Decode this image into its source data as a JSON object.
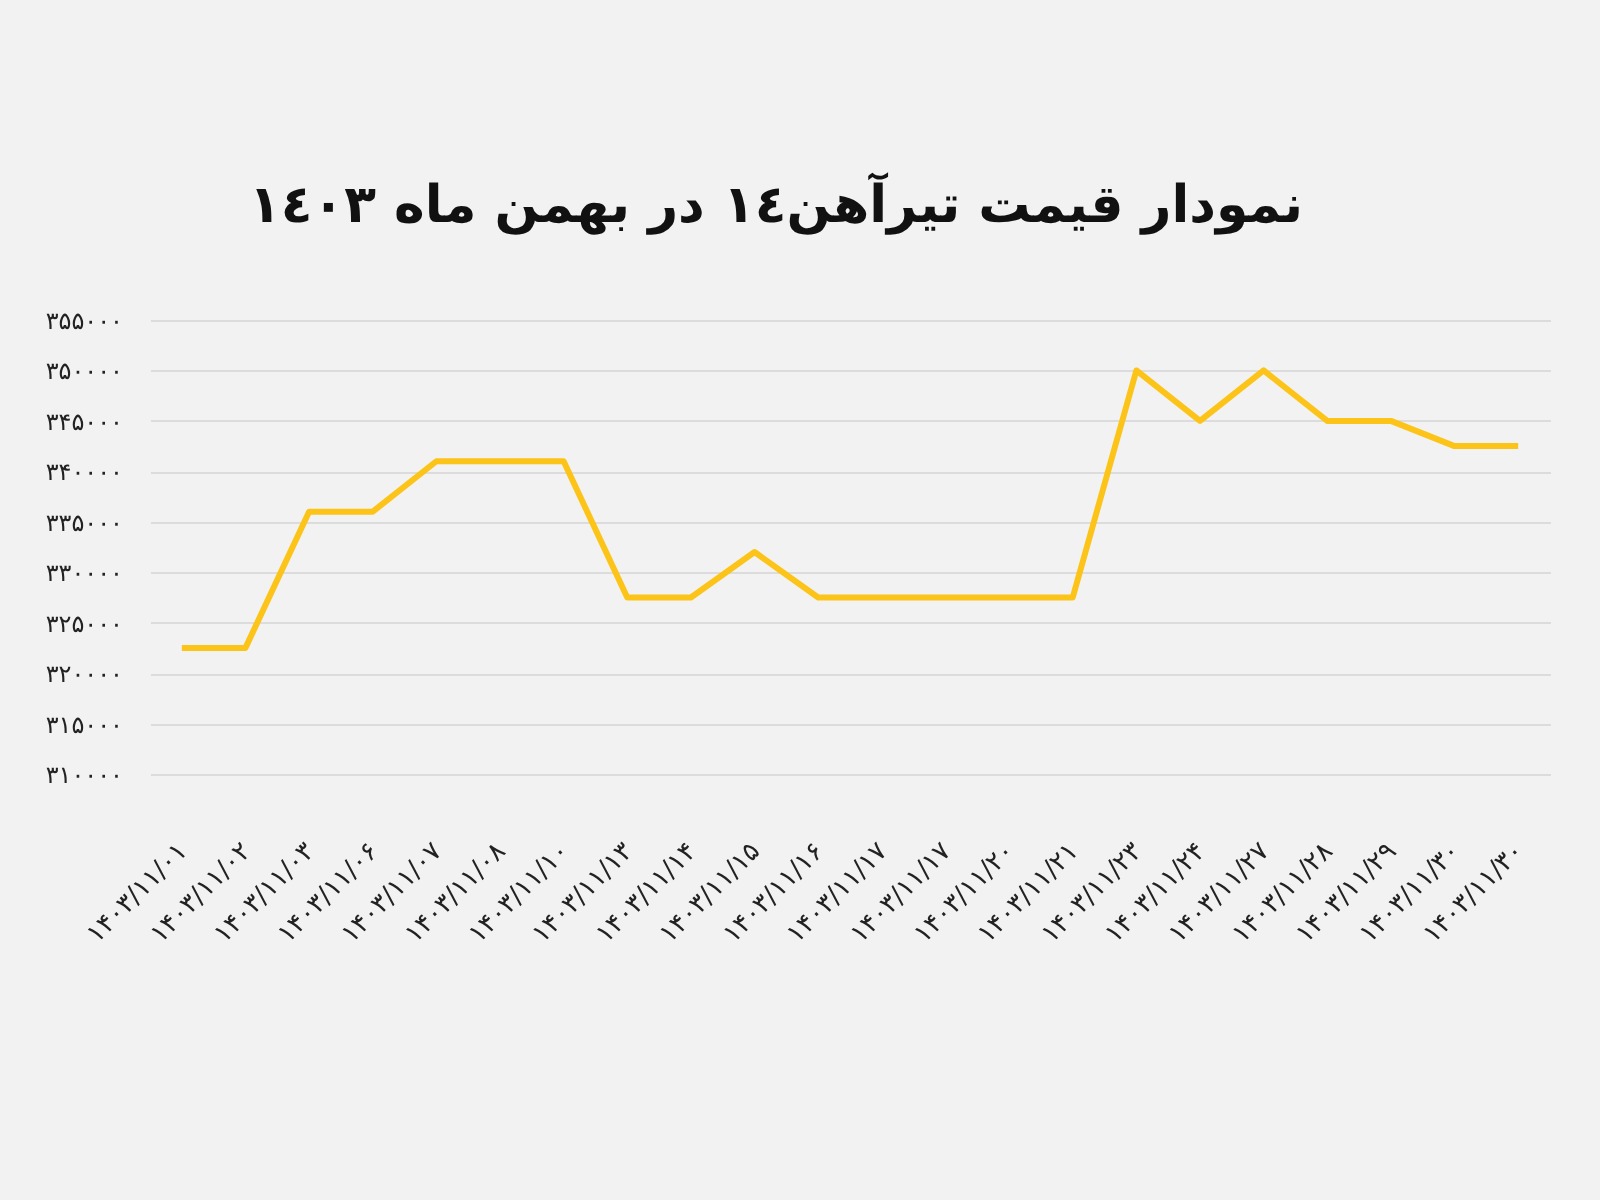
{
  "chart_data": {
    "type": "line",
    "title": "نمودار قیمت تیرآهن١٤ در بهمن ماه ١٤٠٣",
    "categories": [
      "۱۴۰۳/۱۱/۰۱",
      "۱۴۰۳/۱۱/۰۲",
      "۱۴۰۳/۱۱/۰۳",
      "۱۴۰۳/۱۱/۰۶",
      "۱۴۰۳/۱۱/۰۷",
      "۱۴۰۳/۱۱/۰۸",
      "۱۴۰۳/۱۱/۱۰",
      "۱۴۰۳/۱۱/۱۳",
      "۱۴۰۳/۱۱/۱۴",
      "۱۴۰۳/۱۱/۱۵",
      "۱۴۰۳/۱۱/۱۶",
      "۱۴۰۳/۱۱/۱۷",
      "۱۴۰۳/۱۱/۱۷",
      "۱۴۰۳/۱۱/۲۰",
      "۱۴۰۳/۱۱/۲۱",
      "۱۴۰۳/۱۱/۲۳",
      "۱۴۰۳/۱۱/۲۴",
      "۱۴۰۳/۱۱/۲۷",
      "۱۴۰۳/۱۱/۲۸",
      "۱۴۰۳/۱۱/۲۹",
      "۱۴۰۳/۱۱/۳۰",
      "۱۴۰۳/۱۱/۳۰"
    ],
    "values": [
      322500,
      322500,
      336000,
      336000,
      341000,
      341000,
      341000,
      327500,
      327500,
      332000,
      327500,
      327500,
      327500,
      327500,
      327500,
      350000,
      345000,
      350000,
      345000,
      345000,
      342500,
      342500
    ],
    "color": "#fcc419",
    "ylim": [
      310000,
      355000
    ],
    "yticks": [
      {
        "value": 310000,
        "label": "۳۱۰۰۰۰"
      },
      {
        "value": 315000,
        "label": "۳۱۵۰۰۰"
      },
      {
        "value": 320000,
        "label": "۳۲۰۰۰۰"
      },
      {
        "value": 325000,
        "label": "۳۲۵۰۰۰"
      },
      {
        "value": 330000,
        "label": "۳۳۰۰۰۰"
      },
      {
        "value": 335000,
        "label": "۳۳۵۰۰۰"
      },
      {
        "value": 340000,
        "label": "۳۴۰۰۰۰"
      },
      {
        "value": 345000,
        "label": "۳۴۵۰۰۰"
      },
      {
        "value": 350000,
        "label": "۳۵۰۰۰۰"
      },
      {
        "value": 355000,
        "label": "۳۵۵۰۰۰"
      }
    ],
    "grid": "y"
  }
}
